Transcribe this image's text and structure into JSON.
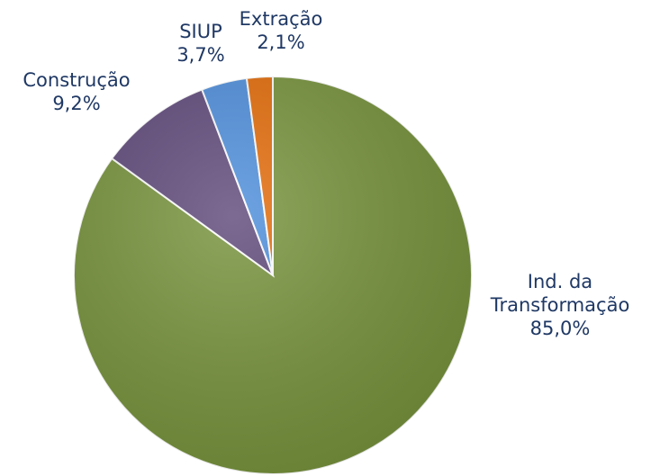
{
  "chart_data": {
    "type": "pie",
    "categories": [
      "Ind. da Transformação",
      "Construção",
      "SIUP",
      "Extração"
    ],
    "values": [
      85.0,
      9.2,
      3.7,
      2.1
    ],
    "value_labels": [
      "85,0%",
      "9,2%",
      "3,7%",
      "2,1%"
    ],
    "colors": [
      "#77933c",
      "#604a7b",
      "#4f8fdc",
      "#e46c0a"
    ]
  }
}
